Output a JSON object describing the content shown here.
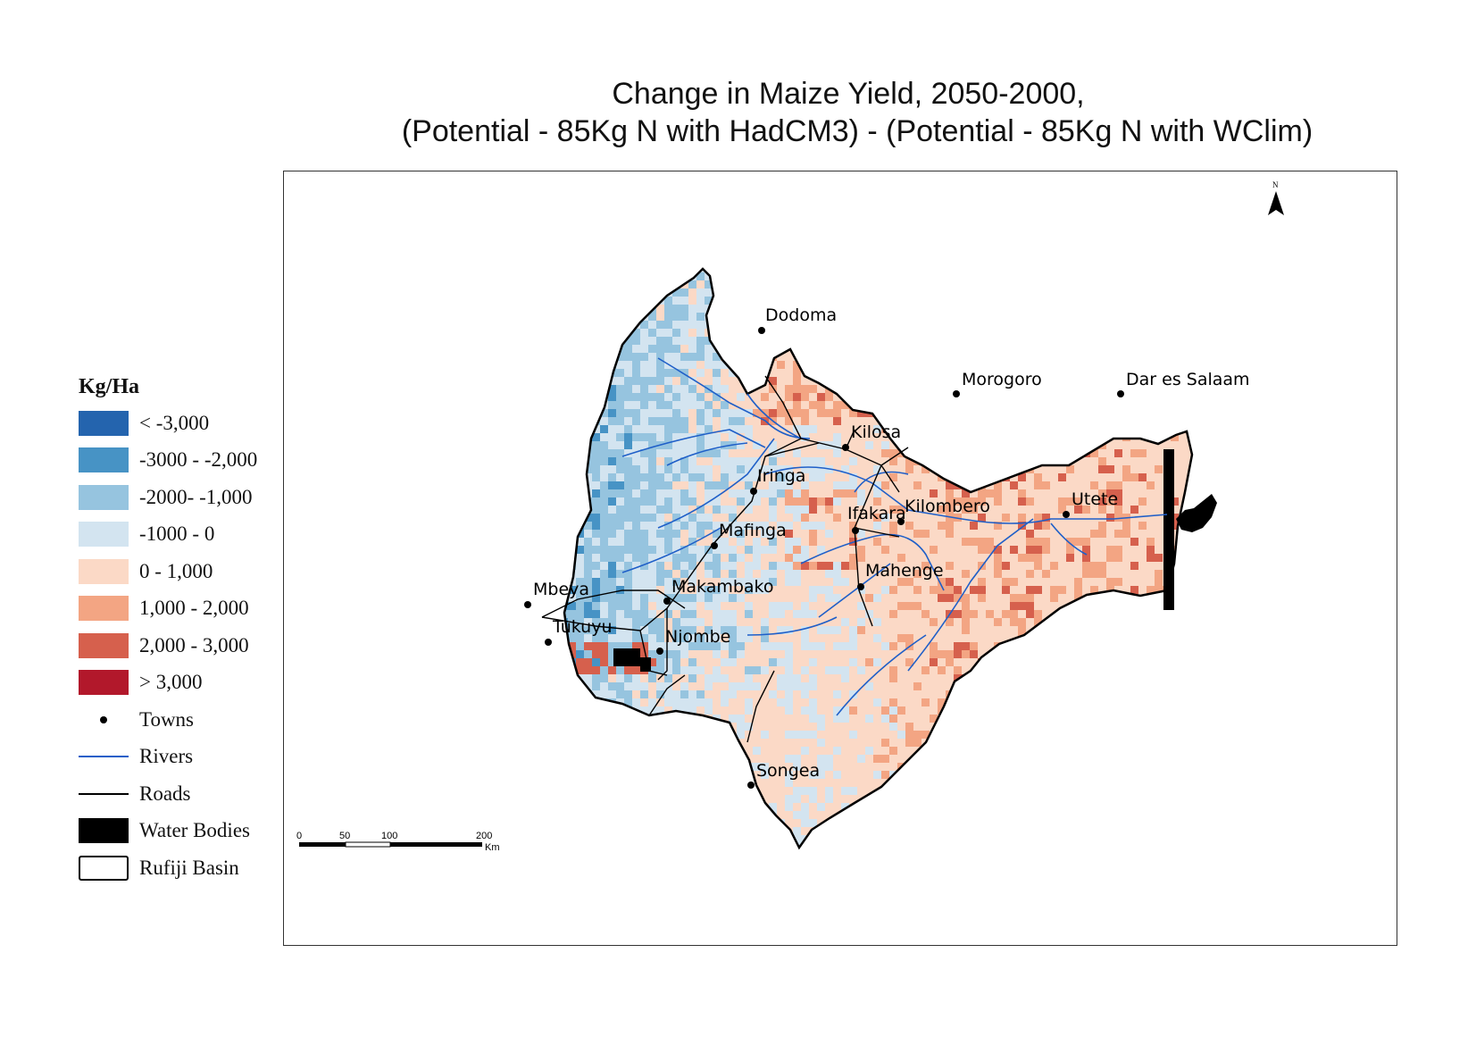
{
  "title": {
    "line1": "Change in Maize Yield, 2050-2000,",
    "line2": "(Potential - 85Kg N with HadCM3) - (Potential - 85Kg N with WClim)"
  },
  "legend": {
    "title": "Kg/Ha",
    "classes": [
      {
        "label": "< -3,000",
        "color": "#2464ae"
      },
      {
        "label": "-3000 - -2,000",
        "color": "#4793c5"
      },
      {
        "label": "-2000- -1,000",
        "color": "#96c4df"
      },
      {
        "label": "-1000 - 0",
        "color": "#d3e4f0"
      },
      {
        "label": "0 - 1,000",
        "color": "#fbd9c6"
      },
      {
        "label": "1,000 - 2,000",
        "color": "#f3a583"
      },
      {
        "label": "2,000 - 3,000",
        "color": "#d6604d"
      },
      {
        "label": "> 3,000",
        "color": "#b2182b"
      }
    ],
    "symbols": [
      {
        "label": "Towns",
        "type": "dot"
      },
      {
        "label": "Rivers",
        "type": "river"
      },
      {
        "label": "Roads",
        "type": "road"
      },
      {
        "label": "Water Bodies",
        "type": "water"
      },
      {
        "label": "Rufiji Basin",
        "type": "basin"
      }
    ]
  },
  "towns": [
    "Dodoma",
    "Morogoro",
    "Dar es Salaam",
    "Kilosa",
    "Iringa",
    "Kilombero",
    "Ifakara",
    "Utete",
    "Mafinga",
    "Mahenge",
    "Makambako",
    "Mbeya",
    "Tukuyu",
    "Njombe",
    "Songea"
  ],
  "scale_bar": {
    "ticks": [
      "0",
      "50",
      "100",
      "200"
    ],
    "unit": "Km"
  },
  "north_arrow": {
    "label": "N"
  }
}
